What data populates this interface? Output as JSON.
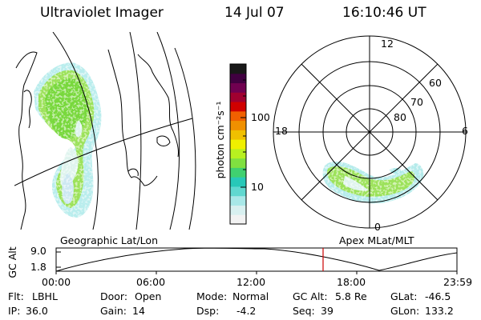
{
  "header": {
    "title": "Ultraviolet Imager",
    "date": "14 Jul 07",
    "time": "16:10:46 UT"
  },
  "colorbar": {
    "label": "photon cm⁻²s⁻¹",
    "ticks": [
      "100",
      "10"
    ],
    "colors": [
      "#f2f2f2",
      "#d8f0f0",
      "#a8e8e8",
      "#60d8d0",
      "#28c8b8",
      "#40d070",
      "#80e040",
      "#b8f020",
      "#f0f000",
      "#f0c000",
      "#f09000",
      "#f06000",
      "#d00000",
      "#a00030",
      "#700050",
      "#400040",
      "#181818"
    ]
  },
  "left_map": {
    "label": "Geographic Lat/Lon"
  },
  "polar_plot": {
    "label": "Apex MLat/MLT",
    "mlt_labels": {
      "top": "12",
      "right": "6",
      "bottom": "0",
      "left": "18"
    },
    "lat_labels": [
      "60",
      "70",
      "80"
    ]
  },
  "alt_plot": {
    "ylabel": "GC Alt",
    "yticks": [
      "9.0",
      "1.8"
    ],
    "xticks": [
      "00:00",
      "06:00",
      "12:00",
      "18:00",
      "23:59"
    ],
    "marker_color": "#cc0000"
  },
  "info": {
    "row1": [
      {
        "key": "Flt:",
        "value": "LBHL"
      },
      {
        "key": "Door:",
        "value": "Open"
      },
      {
        "key": "Mode:",
        "value": "Normal"
      },
      {
        "key": "GC Alt:",
        "value": "5.8 Re"
      },
      {
        "key": "GLat:",
        "value": "-46.5"
      }
    ],
    "row2": [
      {
        "key": "IP:",
        "value": "36.0"
      },
      {
        "key": "Gain:",
        "value": "14"
      },
      {
        "key": "Dsp:",
        "value": "-4.2"
      },
      {
        "key": "Seq:",
        "value": "39"
      },
      {
        "key": "GLon:",
        "value": "133.2"
      }
    ]
  }
}
